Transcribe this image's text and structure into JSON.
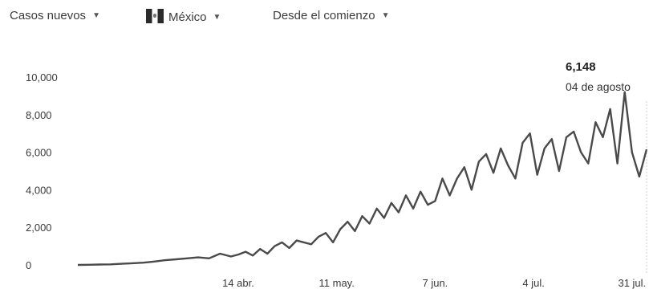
{
  "toolbar": {
    "metric": "Casos nuevos",
    "country": "México",
    "range": "Desde el comienzo"
  },
  "tooltip": {
    "value": "6,148",
    "date": "04 de agosto"
  },
  "colors": {
    "line": "#4a4a4a",
    "text": "#3c3c3c"
  },
  "chart_data": {
    "type": "line",
    "title": "",
    "xlabel": "",
    "ylabel": "",
    "ylim": [
      0,
      10000
    ],
    "grid": false,
    "yticks": [
      "0",
      "2,000",
      "4,000",
      "6,000",
      "8,000",
      "10,000"
    ],
    "xticks": [
      {
        "label": "14 abr.",
        "x": "2020-04-14"
      },
      {
        "label": "11 may.",
        "x": "2020-05-11"
      },
      {
        "label": "7 jun.",
        "x": "2020-06-07"
      },
      {
        "label": "4 jul.",
        "x": "2020-07-04"
      },
      {
        "label": "31 jul.",
        "x": "2020-07-31"
      }
    ],
    "series": [
      {
        "name": "",
        "x": [
          "2020-03-01",
          "2020-03-04",
          "2020-03-07",
          "2020-03-10",
          "2020-03-13",
          "2020-03-16",
          "2020-03-19",
          "2020-03-22",
          "2020-03-25",
          "2020-03-28",
          "2020-03-31",
          "2020-04-03",
          "2020-04-06",
          "2020-04-09",
          "2020-04-12",
          "2020-04-14",
          "2020-04-16",
          "2020-04-18",
          "2020-04-20",
          "2020-04-22",
          "2020-04-24",
          "2020-04-26",
          "2020-04-28",
          "2020-04-30",
          "2020-05-02",
          "2020-05-04",
          "2020-05-06",
          "2020-05-08",
          "2020-05-10",
          "2020-05-12",
          "2020-05-14",
          "2020-05-16",
          "2020-05-18",
          "2020-05-20",
          "2020-05-22",
          "2020-05-24",
          "2020-05-26",
          "2020-05-28",
          "2020-05-30",
          "2020-06-01",
          "2020-06-03",
          "2020-06-05",
          "2020-06-07",
          "2020-06-09",
          "2020-06-11",
          "2020-06-13",
          "2020-06-15",
          "2020-06-17",
          "2020-06-19",
          "2020-06-21",
          "2020-06-23",
          "2020-06-25",
          "2020-06-27",
          "2020-06-29",
          "2020-07-01",
          "2020-07-03",
          "2020-07-05",
          "2020-07-07",
          "2020-07-09",
          "2020-07-11",
          "2020-07-13",
          "2020-07-15",
          "2020-07-17",
          "2020-07-19",
          "2020-07-21",
          "2020-07-23",
          "2020-07-25",
          "2020-07-27",
          "2020-07-29",
          "2020-07-31",
          "2020-08-02",
          "2020-08-04"
        ],
        "y": [
          0,
          10,
          20,
          30,
          60,
          90,
          120,
          180,
          250,
          300,
          350,
          400,
          350,
          600,
          450,
          550,
          700,
          500,
          850,
          600,
          1000,
          1200,
          900,
          1300,
          1200,
          1100,
          1500,
          1700,
          1200,
          1900,
          2300,
          1800,
          2600,
          2200,
          3000,
          2500,
          3300,
          2800,
          3700,
          3000,
          3900,
          3200,
          3400,
          4600,
          3700,
          4600,
          5200,
          4000,
          5500,
          5900,
          4900,
          6200,
          5300,
          4600,
          6500,
          7000,
          4800,
          6200,
          6700,
          5000,
          6800,
          7100,
          6000,
          5400,
          7600,
          6800,
          8300,
          5400,
          9200,
          6000,
          4700,
          6148
        ]
      }
    ]
  }
}
